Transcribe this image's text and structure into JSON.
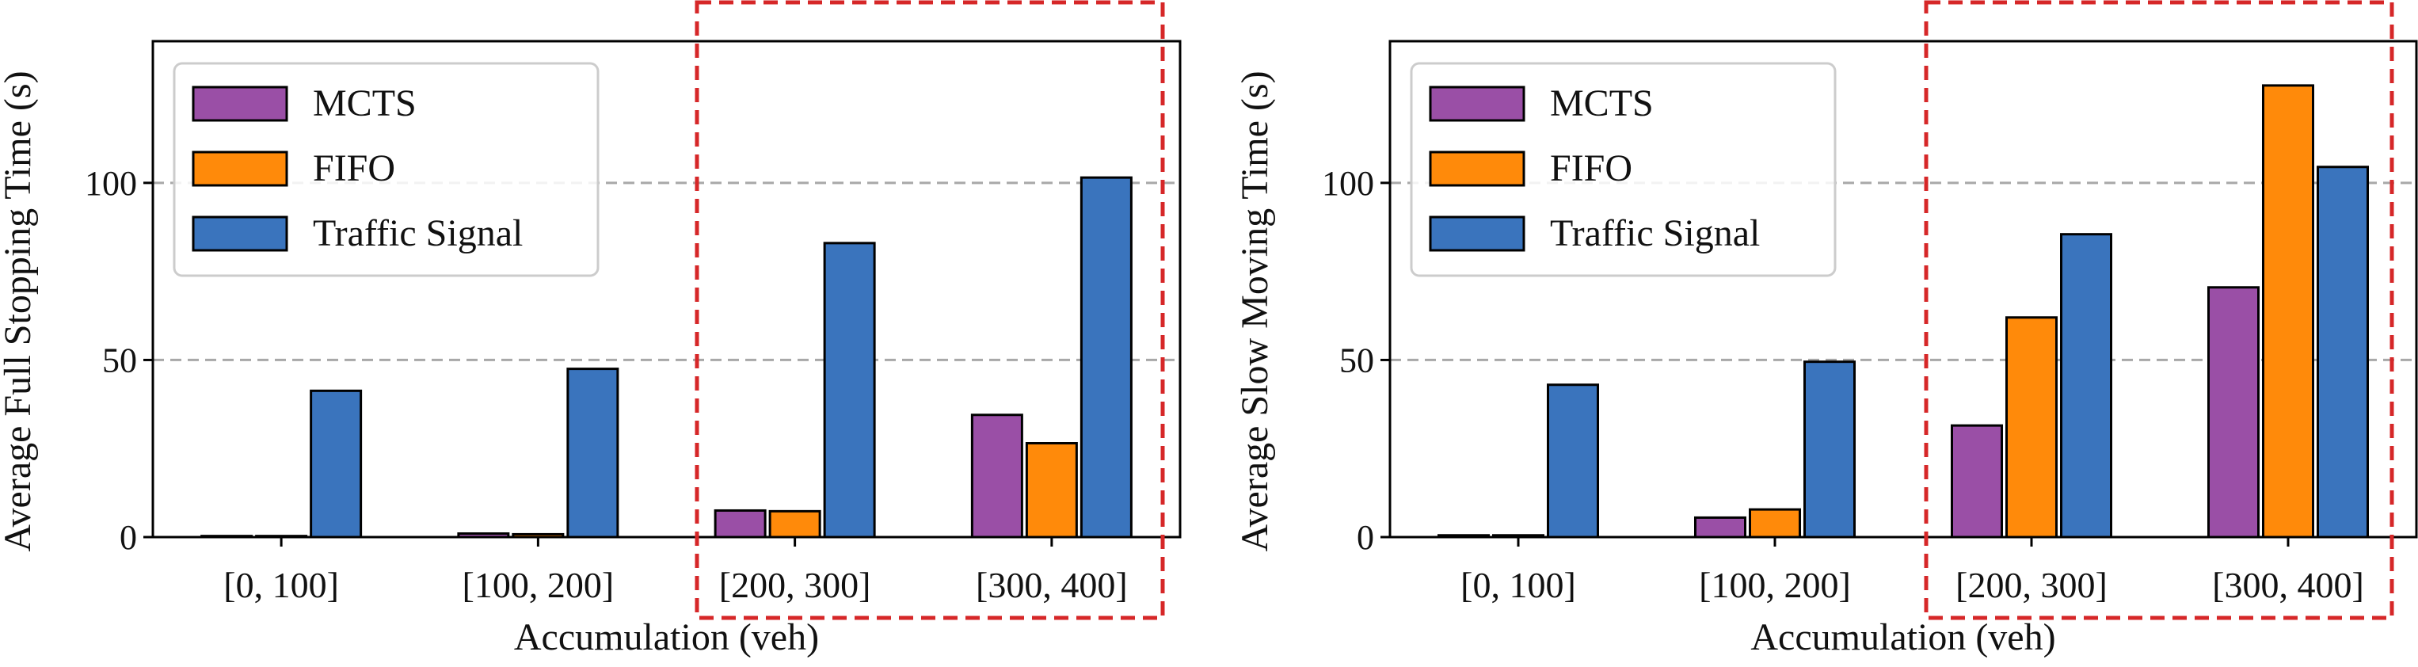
{
  "chart_data": [
    {
      "type": "bar",
      "categories": [
        "[0, 100]",
        "[100, 200]",
        "[200, 300]",
        "[300, 400]"
      ],
      "series": [
        {
          "name": "MCTS",
          "values": [
            0.3,
            1.0,
            7.5,
            34.5
          ]
        },
        {
          "name": "FIFO",
          "values": [
            0.3,
            0.8,
            7.3,
            26.5
          ]
        },
        {
          "name": "Traffic Signal",
          "values": [
            41.3,
            47.5,
            83.0,
            101.5
          ]
        }
      ],
      "xlabel": "Accumulation (veh)",
      "ylabel": "Average Full Stopping Time (s)",
      "ylim": [
        0,
        140
      ],
      "yticks": [
        0,
        50,
        100
      ],
      "grid": "horizontal dashed at y ticks",
      "legend": "top-left",
      "highlight": [
        "[200, 300]",
        "[300, 400]"
      ]
    },
    {
      "type": "bar",
      "categories": [
        "[0, 100]",
        "[100, 200]",
        "[200, 300]",
        "[300, 400]"
      ],
      "series": [
        {
          "name": "MCTS",
          "values": [
            0.5,
            5.5,
            31.5,
            70.5
          ]
        },
        {
          "name": "FIFO",
          "values": [
            0.5,
            7.8,
            62.0,
            127.5
          ]
        },
        {
          "name": "Traffic Signal",
          "values": [
            43.0,
            49.5,
            85.5,
            104.5
          ]
        }
      ],
      "xlabel": "Accumulation (veh)",
      "ylabel": "Average Slow Moving Time (s)",
      "ylim": [
        0,
        140
      ],
      "yticks": [
        0,
        50,
        100
      ],
      "grid": "horizontal dashed at y ticks",
      "legend": "top-left",
      "highlight": [
        "[200, 300]",
        "[300, 400]"
      ]
    }
  ],
  "colors": {
    "MCTS": "#9a4fa6",
    "FIFO": "#ff8a0a",
    "Traffic Signal": "#3a74bd",
    "grid": "#a8a8a8",
    "highlight": "#d62728"
  }
}
